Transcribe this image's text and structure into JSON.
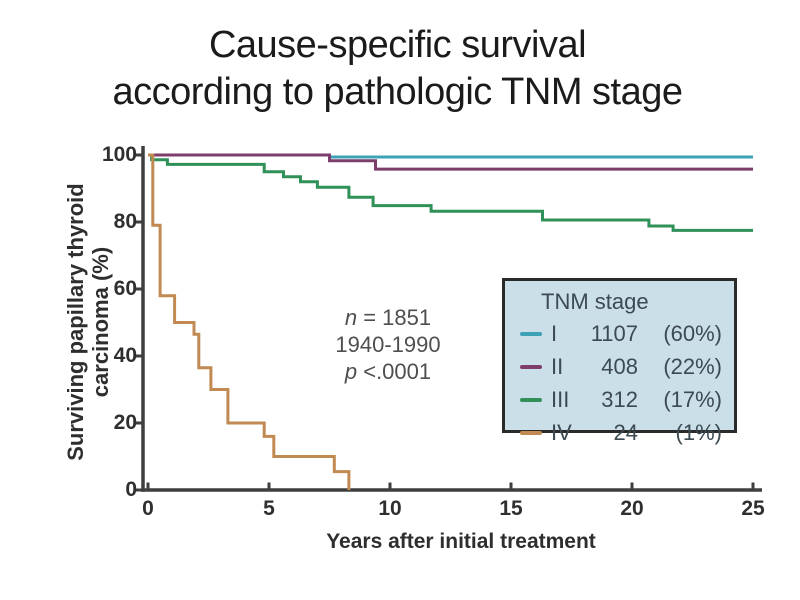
{
  "title": {
    "line1": "Cause-specific survival",
    "line2": "according to pathologic TNM stage"
  },
  "legend": {
    "title": "TNM stage"
  },
  "chart_data": {
    "type": "line",
    "subtype": "kaplan-meier-step",
    "title": "Cause-specific survival according to pathologic TNM stage",
    "xlabel": "Years after initial treatment",
    "ylabel": "Surviving papillary thyroid carcinoma (%)",
    "ylabel_lines": [
      "Surviving papillary thyroid",
      "carcinoma (%)"
    ],
    "xlim": [
      0,
      25
    ],
    "ylim": [
      0,
      100
    ],
    "x_ticks": [
      0,
      5,
      10,
      15,
      20,
      25
    ],
    "y_ticks": [
      100,
      80,
      60,
      40,
      20,
      0
    ],
    "grid": false,
    "legend_position": "middle-right",
    "axis_color": "#3e3e3e",
    "legend_bg": "#cbdfe9",
    "series": [
      {
        "name": "I",
        "count": "1107",
        "percent": "(60%)",
        "color": "#3da2b6",
        "x": [
          0,
          7.5,
          25
        ],
        "y": [
          100,
          99.4,
          99.4
        ]
      },
      {
        "name": "II",
        "count": "408",
        "percent": "(22%)",
        "color": "#7d3e6c",
        "x": [
          0,
          7.5,
          9.4,
          25
        ],
        "y": [
          100,
          98.3,
          95.8,
          95.8
        ]
      },
      {
        "name": "III",
        "count": "312",
        "percent": "(17%)",
        "color": "#2f9058",
        "x": [
          0,
          0.15,
          0.8,
          4.8,
          5.6,
          6.3,
          7.0,
          8.3,
          9.3,
          11.7,
          16.3,
          20.7,
          21.7,
          25
        ],
        "y": [
          100,
          98.6,
          97.2,
          95,
          93.5,
          92,
          90.4,
          87.4,
          84.9,
          83.2,
          80.6,
          78.8,
          77.5,
          77.5
        ]
      },
      {
        "name": "IV",
        "count": "24",
        "percent": "(1%)",
        "color": "#c18a52",
        "x": [
          0,
          0.2,
          0.5,
          1.1,
          1.9,
          2.1,
          2.6,
          3.3,
          4.8,
          5.2,
          7.7,
          8.3
        ],
        "y": [
          100,
          79,
          58,
          50,
          46.5,
          36.5,
          30,
          20,
          16,
          10,
          5.5,
          0
        ]
      }
    ],
    "annotation": {
      "n_italic": "n",
      "n_rest": " = 1851",
      "period": "1940-1990",
      "p_italic": "p",
      "p_rest": " <.0001"
    }
  }
}
